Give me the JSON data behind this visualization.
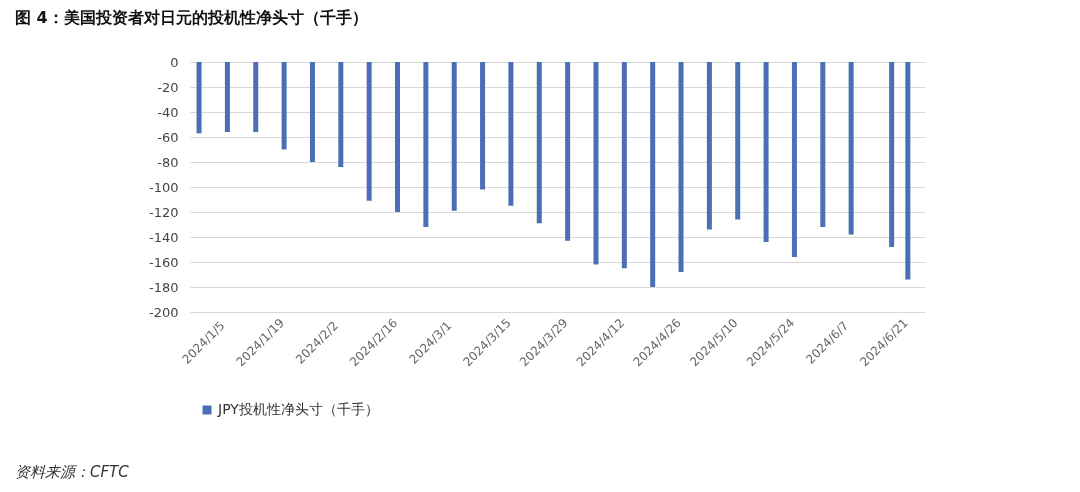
{
  "chart_data": {
    "type": "bar",
    "title": "图 4：美国投资者对日元的投机性净头寸（千手）",
    "x": [
      "2024-01-05",
      "2024-01-12",
      "2024-01-19",
      "2024-01-26",
      "2024-02-02",
      "2024-02-09",
      "2024-02-16",
      "2024-02-23",
      "2024-03-01",
      "2024-03-08",
      "2024-03-15",
      "2024-03-22",
      "2024-03-29",
      "2024-04-05",
      "2024-04-12",
      "2024-04-19",
      "2024-04-26",
      "2024-05-03",
      "2024-05-10",
      "2024-05-17",
      "2024-05-24",
      "2024-05-31",
      "2024-06-07",
      "2024-06-14",
      "2024-06-24",
      "2024-06-28"
    ],
    "series": [
      {
        "name": "JPY投机性净头寸（千手）",
        "color": "#4a6fb5",
        "values": [
          -57,
          -56,
          -56,
          -70,
          -80,
          -84,
          -111,
          -120,
          -132,
          -119,
          -102,
          -115,
          -129,
          -143,
          -162,
          -165,
          -180,
          -168,
          -134,
          -126,
          -144,
          -156,
          -132,
          -138,
          -148,
          -174
        ]
      }
    ],
    "xlim": [
      "2024-01-04",
      "2024-07-01"
    ],
    "xticks": [
      {
        "value": "2024-01-05",
        "label": "2024/1/5"
      },
      {
        "value": "2024-01-19",
        "label": "2024/1/19"
      },
      {
        "value": "2024-02-02",
        "label": "2024/2/2"
      },
      {
        "value": "2024-02-16",
        "label": "2024/2/16"
      },
      {
        "value": "2024-03-01",
        "label": "2024/3/1"
      },
      {
        "value": "2024-03-15",
        "label": "2024/3/15"
      },
      {
        "value": "2024-03-29",
        "label": "2024/3/29"
      },
      {
        "value": "2024-04-12",
        "label": "2024/4/12"
      },
      {
        "value": "2024-04-26",
        "label": "2024/4/26"
      },
      {
        "value": "2024-05-10",
        "label": "2024/5/10"
      },
      {
        "value": "2024-05-24",
        "label": "2024/5/24"
      },
      {
        "value": "2024-06-07",
        "label": "2024/6/7"
      },
      {
        "value": "2024-06-21",
        "label": "2024/6/21"
      }
    ],
    "ylim": [
      -200,
      0
    ],
    "yticks": [
      -200,
      -180,
      -160,
      -140,
      -120,
      -100,
      -80,
      -60,
      -40,
      -20,
      0
    ],
    "grid": "y",
    "legend": "bottom",
    "annotations": [
      "资料来源：CFTC"
    ]
  }
}
